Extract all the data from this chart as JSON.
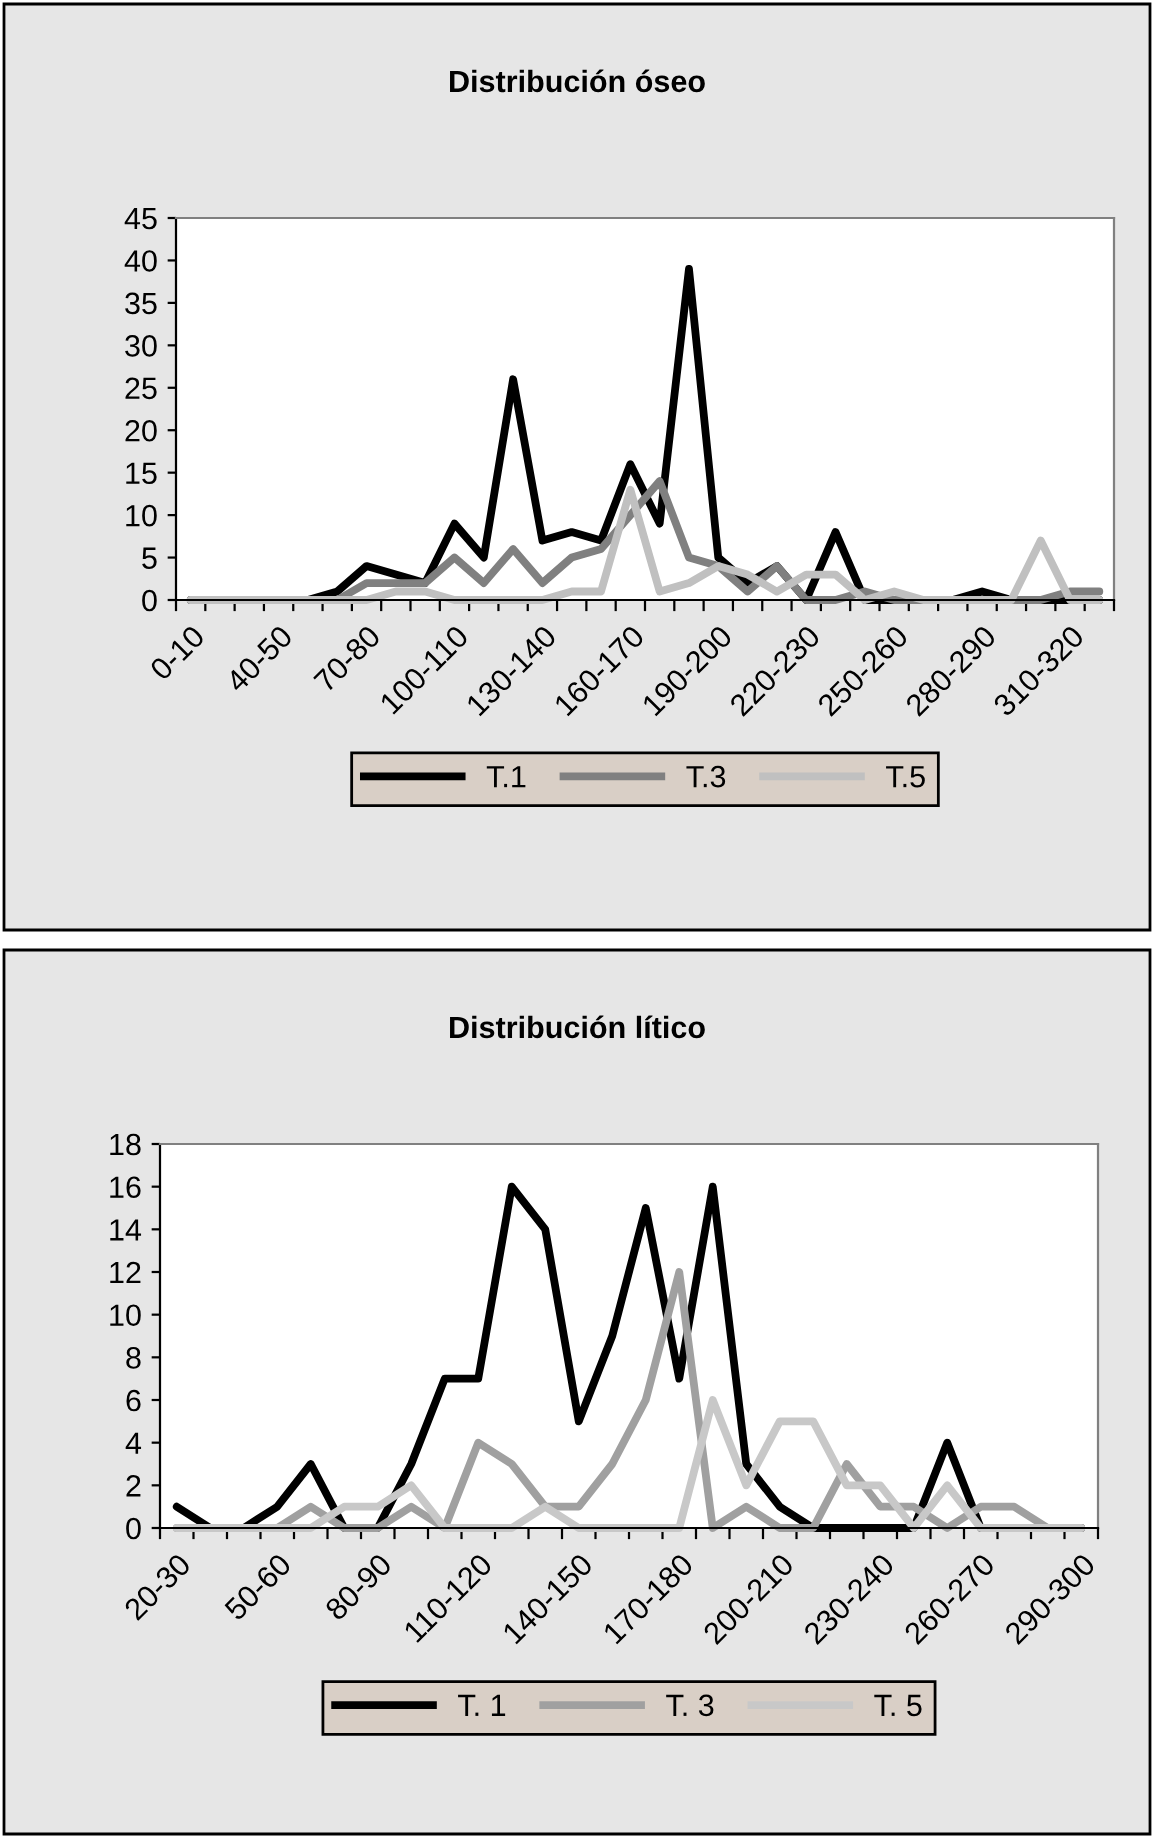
{
  "chart_data": [
    {
      "type": "line",
      "title": "Distribución óseo",
      "categories": [
        "0-10",
        null,
        null,
        "40-50",
        null,
        null,
        "70-80",
        null,
        null,
        "100-110",
        null,
        null,
        "130-140",
        null,
        null,
        "160-170",
        null,
        null,
        "190-200",
        null,
        null,
        "220-230",
        null,
        null,
        "250-260",
        null,
        null,
        "280-290",
        null,
        null,
        "310-320",
        null
      ],
      "ylim": [
        0,
        45
      ],
      "yticks": [
        0,
        5,
        10,
        15,
        20,
        25,
        30,
        35,
        40,
        45
      ],
      "grid": false,
      "legend": "bottom",
      "marker": "none",
      "line_style": "solid",
      "series": [
        {
          "name": "T.1",
          "color": "#000000",
          "values": [
            0,
            0,
            0,
            0,
            0,
            1,
            4,
            3,
            2,
            9,
            5,
            26,
            7,
            8,
            7,
            16,
            9,
            39,
            5,
            2,
            4,
            0,
            8,
            0,
            0,
            0,
            0,
            1,
            0,
            0,
            0,
            0
          ]
        },
        {
          "name": "T.3",
          "color": "#808080",
          "values": [
            0,
            0,
            0,
            0,
            0,
            0,
            2,
            2,
            2,
            5,
            2,
            6,
            2,
            5,
            6,
            10,
            14,
            5,
            4,
            1,
            4,
            0,
            0,
            1,
            0,
            0,
            0,
            0,
            0,
            0,
            1,
            1
          ]
        },
        {
          "name": "T.5",
          "color": "#c0c0c0",
          "values": [
            0,
            0,
            0,
            0,
            0,
            0,
            0,
            1,
            1,
            0,
            0,
            0,
            0,
            1,
            1,
            13,
            1,
            2,
            4,
            3,
            1,
            3,
            3,
            0,
            1,
            0,
            0,
            0,
            0,
            7,
            0,
            0
          ]
        }
      ]
    },
    {
      "type": "line",
      "title": "Distribución lítico",
      "categories": [
        "20-30",
        null,
        null,
        "50-60",
        null,
        null,
        "80-90",
        null,
        null,
        "110-120",
        null,
        null,
        "140-150",
        null,
        null,
        "170-180",
        null,
        null,
        "200-210",
        null,
        null,
        "230-240",
        null,
        null,
        "260-270",
        null,
        null,
        "290-300"
      ],
      "ylim": [
        0,
        18
      ],
      "yticks": [
        0,
        2,
        4,
        6,
        8,
        10,
        12,
        14,
        16,
        18
      ],
      "grid": false,
      "legend": "bottom",
      "marker": "none",
      "line_style": "solid",
      "series": [
        {
          "name": "T. 1",
          "color": "#000000",
          "values": [
            1,
            0,
            0,
            1,
            3,
            0,
            0,
            3,
            7,
            7,
            16,
            14,
            5,
            9,
            15,
            7,
            16,
            3,
            1,
            0,
            0,
            0,
            0,
            4,
            0,
            0,
            0,
            0
          ]
        },
        {
          "name": "T. 3",
          "color": "#a0a0a0",
          "values": [
            0,
            0,
            0,
            0,
            1,
            0,
            0,
            1,
            0,
            4,
            3,
            1,
            1,
            3,
            6,
            12,
            0,
            1,
            0,
            0,
            3,
            1,
            1,
            0,
            1,
            1,
            0,
            0
          ]
        },
        {
          "name": "T. 5",
          "color": "#c8c8c8",
          "values": [
            0,
            0,
            0,
            0,
            0,
            1,
            1,
            2,
            0,
            0,
            0,
            1,
            0,
            0,
            0,
            0,
            6,
            2,
            5,
            5,
            2,
            2,
            0,
            2,
            0,
            0,
            0,
            0
          ]
        }
      ]
    }
  ]
}
